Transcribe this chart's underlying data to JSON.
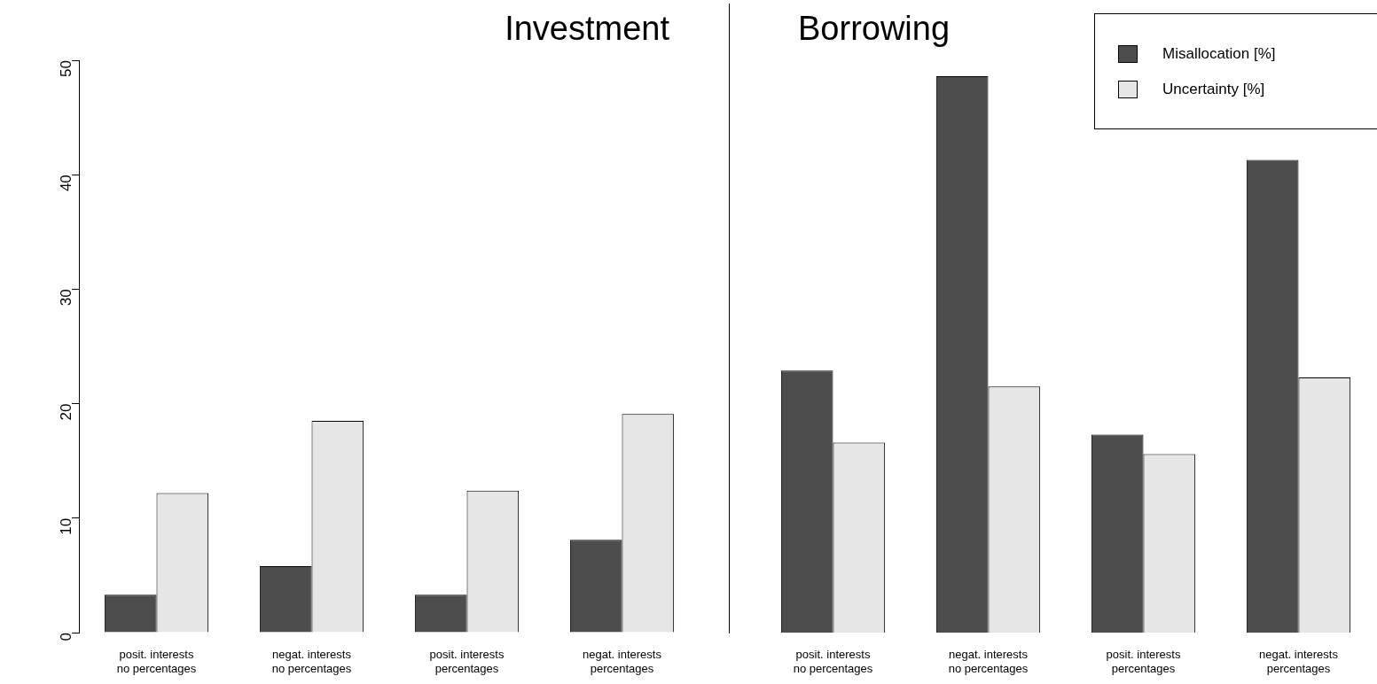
{
  "chart_data": [
    {
      "type": "bar",
      "title": "Investment",
      "categories": [
        "posit. interests\nno percentages",
        "negat. interests\nno percentages",
        "posit. interests\npercentages",
        "negat. interests\npercentages"
      ],
      "series": [
        {
          "color": "#4d4d4d",
          "values": [
            3.3,
            5.8,
            3.3,
            8.1
          ]
        },
        {
          "color": "#e6e6e6",
          "values": [
            12.2,
            18.5,
            12.4,
            19.1
          ]
        }
      ],
      "ylim": [
        0,
        50
      ],
      "yticks": [
        0,
        10,
        20,
        30,
        40,
        50
      ],
      "grid": false,
      "legend": false
    },
    {
      "type": "bar",
      "title": "Borrowing",
      "categories": [
        "posit. interests\nno percentages",
        "negat. interests\nno percentages",
        "posit. interests\npercentages",
        "negat. interests\npercentages"
      ],
      "series": [
        {
          "name": "Misallocation [%]",
          "color": "#4d4d4d",
          "values": [
            22.9,
            48.6,
            17.3,
            41.3
          ]
        },
        {
          "name": "Uncertainty [%]",
          "color": "#e6e6e6",
          "values": [
            16.6,
            21.5,
            15.6,
            22.3
          ]
        }
      ],
      "ylim": [
        0,
        50
      ],
      "yticks": [
        0,
        10,
        20,
        30,
        40,
        50
      ],
      "grid": false,
      "legend": "top right",
      "tick_labels": "x"
    }
  ]
}
